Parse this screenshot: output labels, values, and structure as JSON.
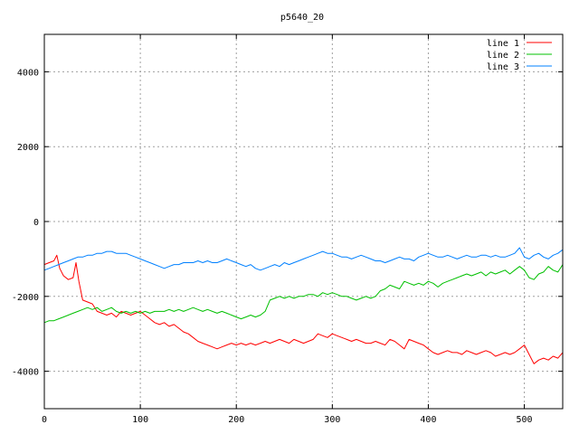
{
  "chart_data": {
    "type": "line",
    "title": "p5640_20",
    "xlabel": "",
    "ylabel": "",
    "xlim": [
      0,
      540
    ],
    "ylim": [
      -5000,
      5000
    ],
    "xticks": [
      0,
      100,
      200,
      300,
      400,
      500
    ],
    "yticks": [
      -4000,
      -2000,
      0,
      2000,
      4000
    ],
    "grid": true,
    "legend_position": "top-right",
    "series": [
      {
        "name": "line 1",
        "color": "#ff0000",
        "x": [
          0,
          5,
          10,
          13,
          16,
          20,
          25,
          30,
          33,
          36,
          40,
          45,
          50,
          55,
          60,
          65,
          70,
          75,
          80,
          85,
          90,
          95,
          100,
          105,
          110,
          115,
          120,
          125,
          130,
          135,
          140,
          145,
          150,
          155,
          160,
          165,
          170,
          175,
          180,
          185,
          190,
          195,
          200,
          205,
          210,
          215,
          220,
          225,
          230,
          235,
          240,
          245,
          250,
          255,
          260,
          265,
          270,
          275,
          280,
          285,
          290,
          295,
          300,
          305,
          310,
          315,
          320,
          325,
          330,
          335,
          340,
          345,
          350,
          355,
          360,
          365,
          370,
          375,
          380,
          385,
          390,
          395,
          400,
          405,
          410,
          415,
          420,
          425,
          430,
          435,
          440,
          445,
          450,
          455,
          460,
          465,
          470,
          475,
          480,
          485,
          490,
          495,
          500,
          505,
          510,
          515,
          520,
          525,
          530,
          535,
          540
        ],
        "y": [
          -1150,
          -1100,
          -1050,
          -900,
          -1250,
          -1450,
          -1550,
          -1500,
          -1100,
          -1600,
          -2100,
          -2150,
          -2200,
          -2400,
          -2450,
          -2500,
          -2450,
          -2550,
          -2400,
          -2450,
          -2500,
          -2450,
          -2400,
          -2500,
          -2600,
          -2700,
          -2750,
          -2700,
          -2800,
          -2750,
          -2850,
          -2950,
          -3000,
          -3100,
          -3200,
          -3250,
          -3300,
          -3350,
          -3400,
          -3350,
          -3300,
          -3250,
          -3300,
          -3250,
          -3300,
          -3250,
          -3300,
          -3250,
          -3200,
          -3250,
          -3200,
          -3150,
          -3200,
          -3250,
          -3150,
          -3200,
          -3250,
          -3200,
          -3150,
          -3000,
          -3050,
          -3100,
          -3000,
          -3050,
          -3100,
          -3150,
          -3200,
          -3150,
          -3200,
          -3250,
          -3250,
          -3200,
          -3250,
          -3300,
          -3150,
          -3200,
          -3300,
          -3400,
          -3150,
          -3200,
          -3250,
          -3300,
          -3400,
          -3500,
          -3550,
          -3500,
          -3450,
          -3500,
          -3500,
          -3550,
          -3450,
          -3500,
          -3550,
          -3500,
          -3450,
          -3500,
          -3600,
          -3550,
          -3500,
          -3550,
          -3500,
          -3400,
          -3300,
          -3550,
          -3800,
          -3700,
          -3650,
          -3700,
          -3600,
          -3650,
          -3500
        ]
      },
      {
        "name": "line 2",
        "color": "#00c000",
        "x": [
          0,
          5,
          10,
          15,
          20,
          25,
          30,
          35,
          40,
          45,
          50,
          55,
          60,
          65,
          70,
          75,
          80,
          85,
          90,
          95,
          100,
          105,
          110,
          115,
          120,
          125,
          130,
          135,
          140,
          145,
          150,
          155,
          160,
          165,
          170,
          175,
          180,
          185,
          190,
          195,
          200,
          205,
          210,
          215,
          220,
          225,
          230,
          235,
          240,
          245,
          250,
          255,
          260,
          265,
          270,
          275,
          280,
          285,
          290,
          295,
          300,
          305,
          310,
          315,
          320,
          325,
          330,
          335,
          340,
          345,
          350,
          355,
          360,
          365,
          370,
          375,
          380,
          385,
          390,
          395,
          400,
          405,
          410,
          415,
          420,
          425,
          430,
          435,
          440,
          445,
          450,
          455,
          460,
          465,
          470,
          475,
          480,
          485,
          490,
          495,
          500,
          505,
          510,
          515,
          520,
          525,
          530,
          535,
          540
        ],
        "y": [
          -2700,
          -2650,
          -2650,
          -2600,
          -2550,
          -2500,
          -2450,
          -2400,
          -2350,
          -2300,
          -2350,
          -2300,
          -2400,
          -2350,
          -2300,
          -2400,
          -2450,
          -2400,
          -2450,
          -2400,
          -2450,
          -2400,
          -2450,
          -2400,
          -2400,
          -2400,
          -2350,
          -2400,
          -2350,
          -2400,
          -2350,
          -2300,
          -2350,
          -2400,
          -2350,
          -2400,
          -2450,
          -2400,
          -2450,
          -2500,
          -2550,
          -2600,
          -2550,
          -2500,
          -2550,
          -2500,
          -2400,
          -2100,
          -2050,
          -2000,
          -2050,
          -2000,
          -2050,
          -2000,
          -2000,
          -1950,
          -1950,
          -2000,
          -1900,
          -1950,
          -1900,
          -1950,
          -2000,
          -2000,
          -2050,
          -2100,
          -2050,
          -2000,
          -2050,
          -2000,
          -1850,
          -1800,
          -1700,
          -1750,
          -1800,
          -1600,
          -1650,
          -1700,
          -1650,
          -1700,
          -1600,
          -1650,
          -1750,
          -1650,
          -1600,
          -1550,
          -1500,
          -1450,
          -1400,
          -1450,
          -1400,
          -1350,
          -1450,
          -1350,
          -1400,
          -1350,
          -1300,
          -1400,
          -1300,
          -1200,
          -1300,
          -1500,
          -1550,
          -1400,
          -1350,
          -1200,
          -1300,
          -1350,
          -1150
        ]
      },
      {
        "name": "line 3",
        "color": "#0080ff",
        "x": [
          0,
          5,
          10,
          15,
          20,
          25,
          30,
          35,
          40,
          45,
          50,
          55,
          60,
          65,
          70,
          75,
          80,
          85,
          90,
          95,
          100,
          105,
          110,
          115,
          120,
          125,
          130,
          135,
          140,
          145,
          150,
          155,
          160,
          165,
          170,
          175,
          180,
          185,
          190,
          195,
          200,
          205,
          210,
          215,
          220,
          225,
          230,
          235,
          240,
          245,
          250,
          255,
          260,
          265,
          270,
          275,
          280,
          285,
          290,
          295,
          300,
          305,
          310,
          315,
          320,
          325,
          330,
          335,
          340,
          345,
          350,
          355,
          360,
          365,
          370,
          375,
          380,
          385,
          390,
          395,
          400,
          405,
          410,
          415,
          420,
          425,
          430,
          435,
          440,
          445,
          450,
          455,
          460,
          465,
          470,
          475,
          480,
          485,
          490,
          495,
          500,
          505,
          510,
          515,
          520,
          525,
          530,
          535,
          540
        ],
        "y": [
          -1300,
          -1250,
          -1200,
          -1150,
          -1100,
          -1050,
          -1000,
          -950,
          -950,
          -900,
          -900,
          -850,
          -850,
          -800,
          -800,
          -850,
          -850,
          -850,
          -900,
          -950,
          -1000,
          -1050,
          -1100,
          -1150,
          -1200,
          -1250,
          -1200,
          -1150,
          -1150,
          -1100,
          -1100,
          -1100,
          -1050,
          -1100,
          -1050,
          -1100,
          -1100,
          -1050,
          -1000,
          -1050,
          -1100,
          -1150,
          -1200,
          -1150,
          -1250,
          -1300,
          -1250,
          -1200,
          -1150,
          -1200,
          -1100,
          -1150,
          -1100,
          -1050,
          -1000,
          -950,
          -900,
          -850,
          -800,
          -850,
          -850,
          -900,
          -950,
          -950,
          -1000,
          -950,
          -900,
          -950,
          -1000,
          -1050,
          -1050,
          -1100,
          -1050,
          -1000,
          -950,
          -1000,
          -1000,
          -1050,
          -950,
          -900,
          -850,
          -900,
          -950,
          -950,
          -900,
          -950,
          -1000,
          -950,
          -900,
          -950,
          -950,
          -900,
          -900,
          -950,
          -900,
          -950,
          -950,
          -900,
          -850,
          -700,
          -950,
          -1000,
          -900,
          -850,
          -950,
          -1000,
          -900,
          -850,
          -750
        ]
      }
    ]
  }
}
